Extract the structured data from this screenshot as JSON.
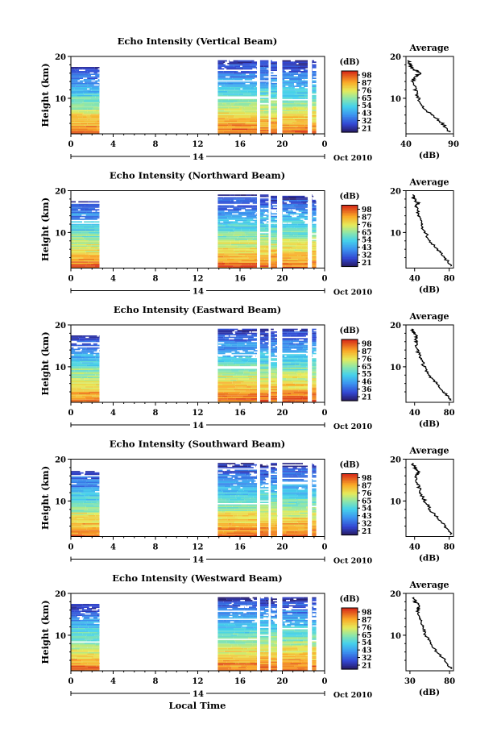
{
  "figure": {
    "xlabel": "Local Time",
    "ylabel": "Height (km)",
    "date_label": "Oct 2010",
    "day_label": "14",
    "avg_title": "Average",
    "avg_xlabel": "(dB)",
    "cbar_label": "(dB)"
  },
  "chart_data": [
    {
      "type": "heatmap",
      "title": "Echo Intensity (Vertical Beam)",
      "xlabel": "",
      "ylabel": "Height (km)",
      "x_ticks": [
        "0",
        "4",
        "8",
        "12",
        "16",
        "20",
        "0"
      ],
      "y_ticks": [
        "10",
        "20"
      ],
      "xlim": [
        0,
        24
      ],
      "ylim": [
        1.5,
        20
      ],
      "colorbar": {
        "label": "(dB)",
        "ticks": [
          "98",
          "87",
          "76",
          "65",
          "54",
          "43",
          "32",
          "21"
        ],
        "range": [
          21,
          98
        ]
      },
      "data_segments_hours": [
        [
          0,
          2.7
        ],
        [
          13.9,
          17.6
        ],
        [
          17.9,
          18.7
        ],
        [
          18.9,
          19.5
        ],
        [
          20.0,
          22.4
        ],
        [
          22.8,
          23.2
        ]
      ],
      "average_profile": {
        "title": "Average",
        "xlabel": "(dB)",
        "xlim": [
          40,
          90
        ],
        "x_ticks": [
          "40",
          "90"
        ],
        "y_ticks": [
          "10",
          "20"
        ],
        "height_km": [
          2,
          4,
          6,
          8,
          10,
          12,
          14,
          15,
          16,
          17,
          18,
          19
        ],
        "db": [
          86,
          78,
          67,
          58,
          53,
          50,
          47,
          49,
          55,
          48,
          44,
          42
        ]
      }
    },
    {
      "type": "heatmap",
      "title": "Echo Intensity (Northward Beam)",
      "xlabel": "",
      "ylabel": "Height (km)",
      "x_ticks": [
        "0",
        "4",
        "8",
        "12",
        "16",
        "20",
        "0"
      ],
      "y_ticks": [
        "10",
        "20"
      ],
      "xlim": [
        0,
        24
      ],
      "ylim": [
        1.5,
        20
      ],
      "colorbar": {
        "label": "(dB)",
        "ticks": [
          "98",
          "87",
          "76",
          "65",
          "54",
          "43",
          "32",
          "21"
        ],
        "range": [
          21,
          98
        ]
      },
      "data_segments_hours": [
        [
          0,
          2.7
        ],
        [
          13.9,
          17.6
        ],
        [
          17.9,
          18.7
        ],
        [
          18.9,
          19.5
        ],
        [
          20.0,
          22.4
        ],
        [
          22.8,
          23.2
        ]
      ],
      "average_profile": {
        "title": "Average",
        "xlabel": "(dB)",
        "xlim": [
          30,
          85
        ],
        "x_ticks": [
          "40",
          "80"
        ],
        "y_ticks": [
          "10",
          "20"
        ],
        "height_km": [
          2,
          4,
          6,
          8,
          10,
          12,
          14,
          16,
          17,
          18,
          19
        ],
        "db": [
          82,
          75,
          66,
          58,
          52,
          48,
          45,
          42,
          44,
          40,
          38
        ]
      }
    },
    {
      "type": "heatmap",
      "title": "Echo Intensity (Eastward Beam)",
      "xlabel": "",
      "ylabel": "Height (km)",
      "x_ticks": [
        "0",
        "4",
        "8",
        "12",
        "16",
        "20",
        "0"
      ],
      "y_ticks": [
        "10",
        "20"
      ],
      "xlim": [
        0,
        24
      ],
      "ylim": [
        1.5,
        20
      ],
      "colorbar": {
        "label": "(dB)",
        "ticks": [
          "98",
          "87",
          "76",
          "65",
          "55",
          "46",
          "36",
          "21"
        ],
        "range": [
          21,
          98
        ]
      },
      "data_segments_hours": [
        [
          0,
          2.7
        ],
        [
          13.9,
          17.6
        ],
        [
          17.9,
          18.7
        ],
        [
          18.9,
          19.5
        ],
        [
          20.0,
          22.4
        ],
        [
          22.8,
          23.2
        ]
      ],
      "average_profile": {
        "title": "Average",
        "xlabel": "(dB)",
        "xlim": [
          30,
          85
        ],
        "x_ticks": [
          "40",
          "80"
        ],
        "y_ticks": [
          "10",
          "20"
        ],
        "height_km": [
          2,
          4,
          6,
          8,
          10,
          12,
          14,
          16,
          17,
          18,
          19
        ],
        "db": [
          82,
          74,
          65,
          57,
          51,
          47,
          43,
          41,
          43,
          39,
          37
        ]
      }
    },
    {
      "type": "heatmap",
      "title": "Echo Intensity (Southward Beam)",
      "xlabel": "",
      "ylabel": "Height (km)",
      "x_ticks": [
        "0",
        "4",
        "8",
        "12",
        "16",
        "20",
        "0"
      ],
      "y_ticks": [
        "10",
        "20"
      ],
      "xlim": [
        0,
        24
      ],
      "ylim": [
        1.5,
        20
      ],
      "colorbar": {
        "label": "(dB)",
        "ticks": [
          "98",
          "87",
          "76",
          "65",
          "54",
          "43",
          "32",
          "21"
        ],
        "range": [
          21,
          98
        ]
      },
      "data_segments_hours": [
        [
          0,
          2.7
        ],
        [
          13.9,
          17.6
        ],
        [
          17.9,
          18.7
        ],
        [
          18.9,
          19.5
        ],
        [
          20.0,
          22.4
        ],
        [
          22.8,
          23.2
        ]
      ],
      "average_profile": {
        "title": "Average",
        "xlabel": "(dB)",
        "xlim": [
          30,
          85
        ],
        "x_ticks": [
          "40",
          "80"
        ],
        "y_ticks": [
          "10",
          "20"
        ],
        "height_km": [
          2,
          4,
          6,
          8,
          10,
          12,
          14,
          16,
          17,
          18,
          19
        ],
        "db": [
          82,
          75,
          66,
          58,
          52,
          47,
          44,
          42,
          44,
          40,
          38
        ]
      }
    },
    {
      "type": "heatmap",
      "title": "Echo Intensity (Westward Beam)",
      "xlabel": "Local Time",
      "ylabel": "Height (km)",
      "x_ticks": [
        "0",
        "4",
        "8",
        "12",
        "16",
        "20",
        "0"
      ],
      "y_ticks": [
        "10",
        "20"
      ],
      "xlim": [
        0,
        24
      ],
      "ylim": [
        1.5,
        20
      ],
      "colorbar": {
        "label": "(dB)",
        "ticks": [
          "98",
          "87",
          "76",
          "65",
          "54",
          "43",
          "32",
          "21"
        ],
        "range": [
          21,
          98
        ]
      },
      "data_segments_hours": [
        [
          0,
          2.7
        ],
        [
          13.9,
          17.6
        ],
        [
          17.9,
          18.7
        ],
        [
          18.9,
          19.5
        ],
        [
          20.0,
          22.4
        ],
        [
          22.8,
          23.2
        ]
      ],
      "average_profile": {
        "title": "Average",
        "xlabel": "(dB)",
        "xlim": [
          25,
          85
        ],
        "x_ticks": [
          "30",
          "80"
        ],
        "y_ticks": [
          "10",
          "20"
        ],
        "height_km": [
          2,
          4,
          6,
          8,
          10,
          12,
          14,
          16,
          17,
          18,
          19
        ],
        "db": [
          82,
          74,
          64,
          56,
          50,
          46,
          42,
          40,
          42,
          37,
          35
        ]
      }
    }
  ]
}
